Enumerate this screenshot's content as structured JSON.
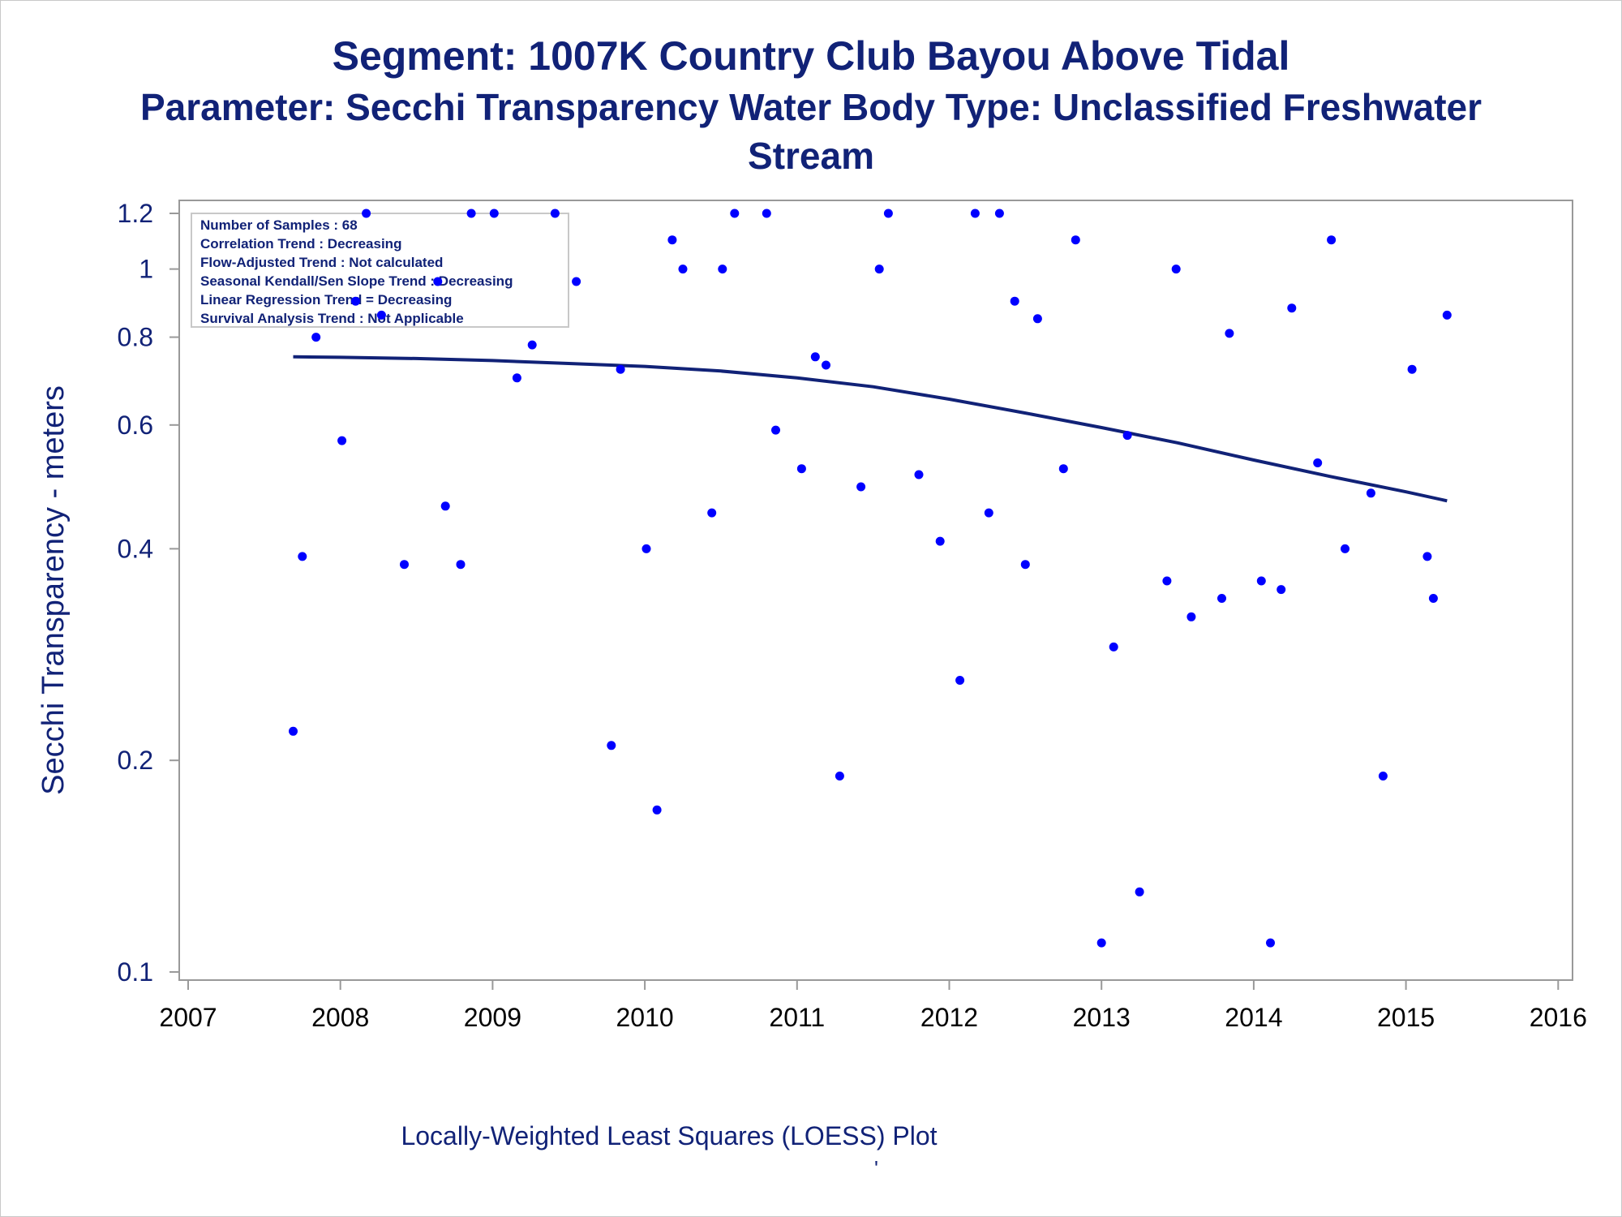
{
  "titles": {
    "line1": "Segment: 1007K  Country Club Bayou Above Tidal",
    "line2": "Parameter: Secchi Transparency   Water Body Type: Unclassified Freshwater",
    "line3": "Stream"
  },
  "footnote": "Locally-Weighted Least Squares (LOESS) Plot",
  "footnote_mark": "'",
  "colors": {
    "text": "#112277",
    "points": "#0000ff",
    "loess": "#112277",
    "axis": "#999999"
  },
  "chart_data": {
    "type": "scatter",
    "ylabel": "Secchi Transparency - meters",
    "xlabel": "",
    "xlim": [
      2007,
      2016
    ],
    "ylim": [
      0.1,
      1.2
    ],
    "yscale": "log",
    "xticks": [
      2007,
      2008,
      2009,
      2010,
      2011,
      2012,
      2013,
      2014,
      2015,
      2016
    ],
    "yticks": [
      {
        "value": 0.1,
        "label": "0.1"
      },
      {
        "value": 0.2,
        "label": "0.2"
      },
      {
        "value": 0.4,
        "label": "0.4"
      },
      {
        "value": 0.6,
        "label": "0.6"
      },
      {
        "value": 0.8,
        "label": "0.8"
      },
      {
        "value": 1.0,
        "label": "1"
      },
      {
        "value": 1.2,
        "label": "1.2"
      }
    ],
    "grid": false,
    "legend_box": {
      "placement": "top-left",
      "lines": [
        "Number of Samples : 68",
        "Correlation Trend : Decreasing",
        "Flow-Adjusted Trend : Not calculated",
        "Seasonal Kendall/Sen Slope Trend : Decreasing",
        "Linear Regression Trend = Decreasing",
        "Survival Analysis Trend : Not Applicable"
      ]
    },
    "series": [
      {
        "kind": "points",
        "points": [
          [
            2007.69,
            0.22
          ],
          [
            2007.75,
            0.39
          ],
          [
            2007.84,
            0.8
          ],
          [
            2008.01,
            0.57
          ],
          [
            2008.1,
            0.9
          ],
          [
            2008.17,
            1.2
          ],
          [
            2008.27,
            0.86
          ],
          [
            2008.42,
            0.38
          ],
          [
            2008.64,
            0.96
          ],
          [
            2008.69,
            0.46
          ],
          [
            2008.79,
            0.38
          ],
          [
            2008.86,
            1.2
          ],
          [
            2009.01,
            1.2
          ],
          [
            2009.16,
            0.7
          ],
          [
            2009.26,
            0.78
          ],
          [
            2009.41,
            1.2
          ],
          [
            2009.55,
            0.96
          ],
          [
            2009.78,
            0.21
          ],
          [
            2009.84,
            0.72
          ],
          [
            2010.01,
            0.4
          ],
          [
            2010.08,
            0.17
          ],
          [
            2010.18,
            1.1
          ],
          [
            2010.25,
            1.0
          ],
          [
            2010.44,
            0.45
          ],
          [
            2010.51,
            1.0
          ],
          [
            2010.59,
            1.2
          ],
          [
            2010.8,
            1.2
          ],
          [
            2010.86,
            0.59
          ],
          [
            2011.03,
            0.52
          ],
          [
            2011.12,
            0.75
          ],
          [
            2011.19,
            0.73
          ],
          [
            2011.28,
            0.19
          ],
          [
            2011.42,
            0.49
          ],
          [
            2011.54,
            1.0
          ],
          [
            2011.6,
            1.2
          ],
          [
            2011.8,
            0.51
          ],
          [
            2011.94,
            0.41
          ],
          [
            2012.07,
            0.26
          ],
          [
            2012.17,
            1.2
          ],
          [
            2012.26,
            0.45
          ],
          [
            2012.33,
            1.2
          ],
          [
            2012.43,
            0.9
          ],
          [
            2012.5,
            0.38
          ],
          [
            2012.58,
            0.85
          ],
          [
            2012.75,
            0.52
          ],
          [
            2012.83,
            1.1
          ],
          [
            2013.0,
            0.11
          ],
          [
            2013.08,
            0.29
          ],
          [
            2013.17,
            0.58
          ],
          [
            2013.25,
            0.13
          ],
          [
            2013.43,
            0.36
          ],
          [
            2013.49,
            1.0
          ],
          [
            2013.59,
            0.32
          ],
          [
            2013.79,
            0.34
          ],
          [
            2013.84,
            0.81
          ],
          [
            2014.05,
            0.36
          ],
          [
            2014.11,
            0.11
          ],
          [
            2014.18,
            0.35
          ],
          [
            2014.25,
            0.88
          ],
          [
            2014.42,
            0.53
          ],
          [
            2014.51,
            1.1
          ],
          [
            2014.6,
            0.4
          ],
          [
            2014.77,
            0.48
          ],
          [
            2014.85,
            0.19
          ],
          [
            2015.04,
            0.72
          ],
          [
            2015.14,
            0.39
          ],
          [
            2015.18,
            0.34
          ],
          [
            2015.27,
            0.86
          ]
        ]
      },
      {
        "kind": "loess",
        "points": [
          [
            2007.69,
            0.75
          ],
          [
            2008.0,
            0.749
          ],
          [
            2008.5,
            0.746
          ],
          [
            2009.0,
            0.741
          ],
          [
            2009.5,
            0.734
          ],
          [
            2010.0,
            0.727
          ],
          [
            2010.5,
            0.716
          ],
          [
            2011.0,
            0.7
          ],
          [
            2011.5,
            0.68
          ],
          [
            2012.0,
            0.653
          ],
          [
            2012.5,
            0.624
          ],
          [
            2013.0,
            0.595
          ],
          [
            2013.5,
            0.566
          ],
          [
            2014.0,
            0.535
          ],
          [
            2014.5,
            0.507
          ],
          [
            2015.0,
            0.482
          ],
          [
            2015.27,
            0.468
          ]
        ]
      }
    ]
  }
}
